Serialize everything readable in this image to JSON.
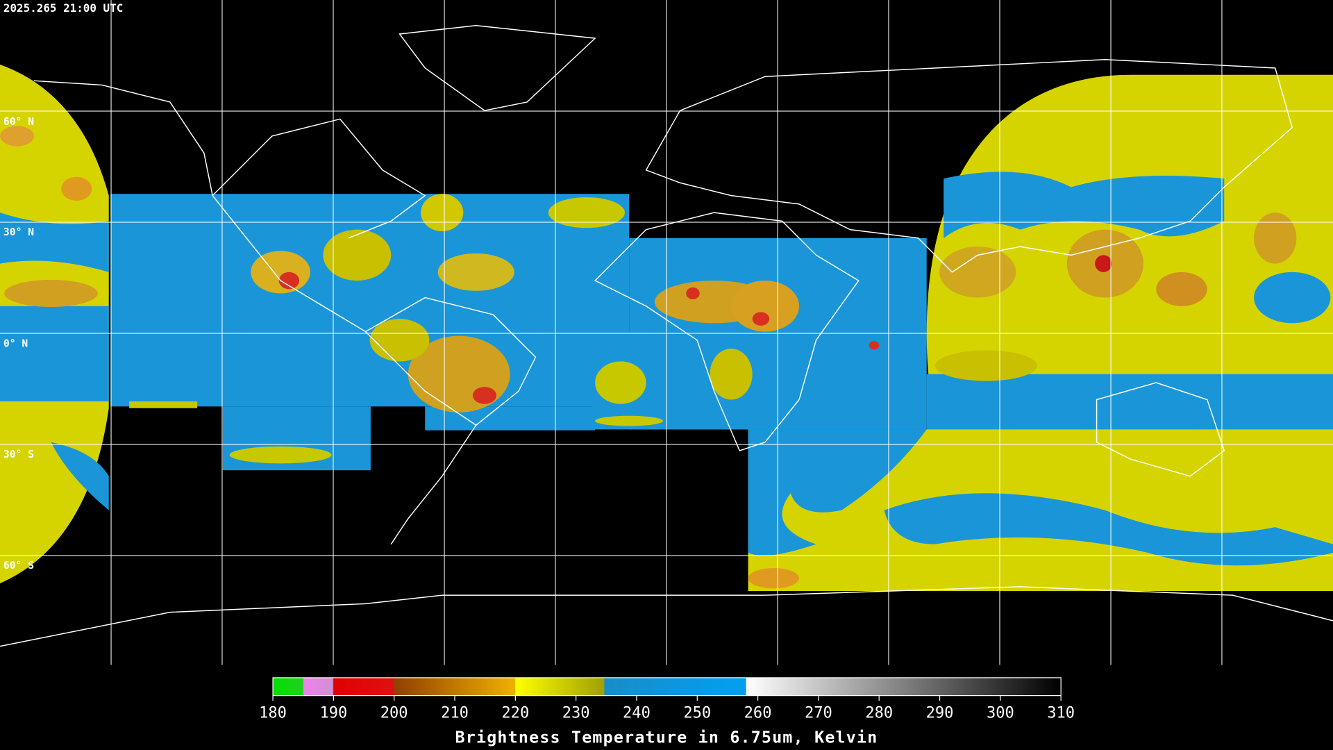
{
  "header": {
    "timestamp": "2025.265 21:00 UTC"
  },
  "map": {
    "lat_labels": [
      "60° N",
      "30° N",
      "0° N",
      "30° S",
      "60° S"
    ]
  },
  "colorbar": {
    "range": [
      180,
      310
    ],
    "ticks": [
      180,
      190,
      200,
      210,
      220,
      230,
      240,
      250,
      260,
      270,
      280,
      290,
      300,
      310
    ],
    "title": "Brightness Temperature in 6.75um, Kelvin"
  }
}
